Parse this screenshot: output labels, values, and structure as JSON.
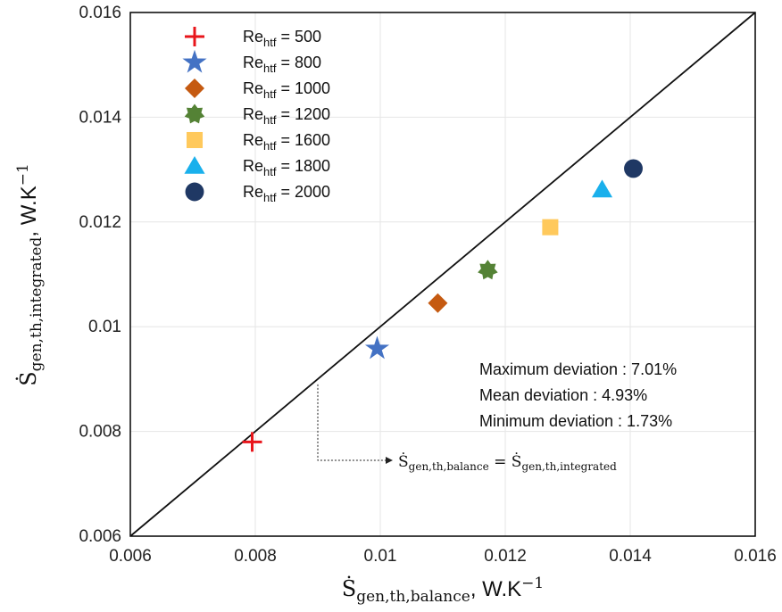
{
  "chart_data": {
    "type": "scatter",
    "xlim": [
      0.006,
      0.016
    ],
    "ylim": [
      0.006,
      0.016
    ],
    "grid": true,
    "legend_position": "top-left",
    "x_ticks": [
      "0.006",
      "0.008",
      "0.01",
      "0.012",
      "0.014",
      "0.016"
    ],
    "y_ticks": [
      "0.006",
      "0.008",
      "0.01",
      "0.012",
      "0.014",
      "0.016"
    ],
    "xlabel": {
      "symbol": "Ṡ",
      "subscript": "gen,th,balance",
      "unit": ", W.K",
      "unit_sup": "−1"
    },
    "ylabel": {
      "symbol": "Ṡ",
      "subscript": "gen,th,integrated",
      "unit": ", W.K",
      "unit_sup": "−1"
    },
    "reference_line": {
      "x": [
        0.006,
        0.016
      ],
      "y": [
        0.006,
        0.016
      ],
      "label": {
        "lhs": "Ṡ",
        "lhs_sub": "gen,th,balance",
        "eq": " = ",
        "rhs": "Ṡ",
        "rhs_sub": "gen,th,integrated"
      }
    },
    "series": [
      {
        "name_base": "Re",
        "name_sub": "htf",
        "name_value": " = 500",
        "marker": "plus",
        "color": "#e8151b",
        "x": [
          0.00795
        ],
        "y": [
          0.0078
        ]
      },
      {
        "name_base": "Re",
        "name_sub": "htf",
        "name_value": " = 800",
        "marker": "star5",
        "color": "#4472c4",
        "x": [
          0.00995
        ],
        "y": [
          0.00958
        ]
      },
      {
        "name_base": "Re",
        "name_sub": "htf",
        "name_value": " = 1000",
        "marker": "diamond",
        "color": "#c55a11",
        "x": [
          0.01092
        ],
        "y": [
          0.01045
        ]
      },
      {
        "name_base": "Re",
        "name_sub": "htf",
        "name_value": " = 1200",
        "marker": "star7",
        "color": "#548235",
        "x": [
          0.01172
        ],
        "y": [
          0.01108
        ]
      },
      {
        "name_base": "Re",
        "name_sub": "htf",
        "name_value": " = 1600",
        "marker": "square",
        "color": "#ffc95c",
        "x": [
          0.01272
        ],
        "y": [
          0.0119
        ]
      },
      {
        "name_base": "Re",
        "name_sub": "htf",
        "name_value": " = 1800",
        "marker": "triangle",
        "color": "#1ab0ec",
        "x": [
          0.01355
        ],
        "y": [
          0.01262
        ]
      },
      {
        "name_base": "Re",
        "name_sub": "htf",
        "name_value": " = 2000",
        "marker": "circle",
        "color": "#1f3864",
        "x": [
          0.01405
        ],
        "y": [
          0.01302
        ]
      }
    ],
    "annotations": [
      "Maximum deviation : 7.01%",
      "Mean deviation : 4.93%",
      "Minimum deviation : 1.73%"
    ]
  }
}
